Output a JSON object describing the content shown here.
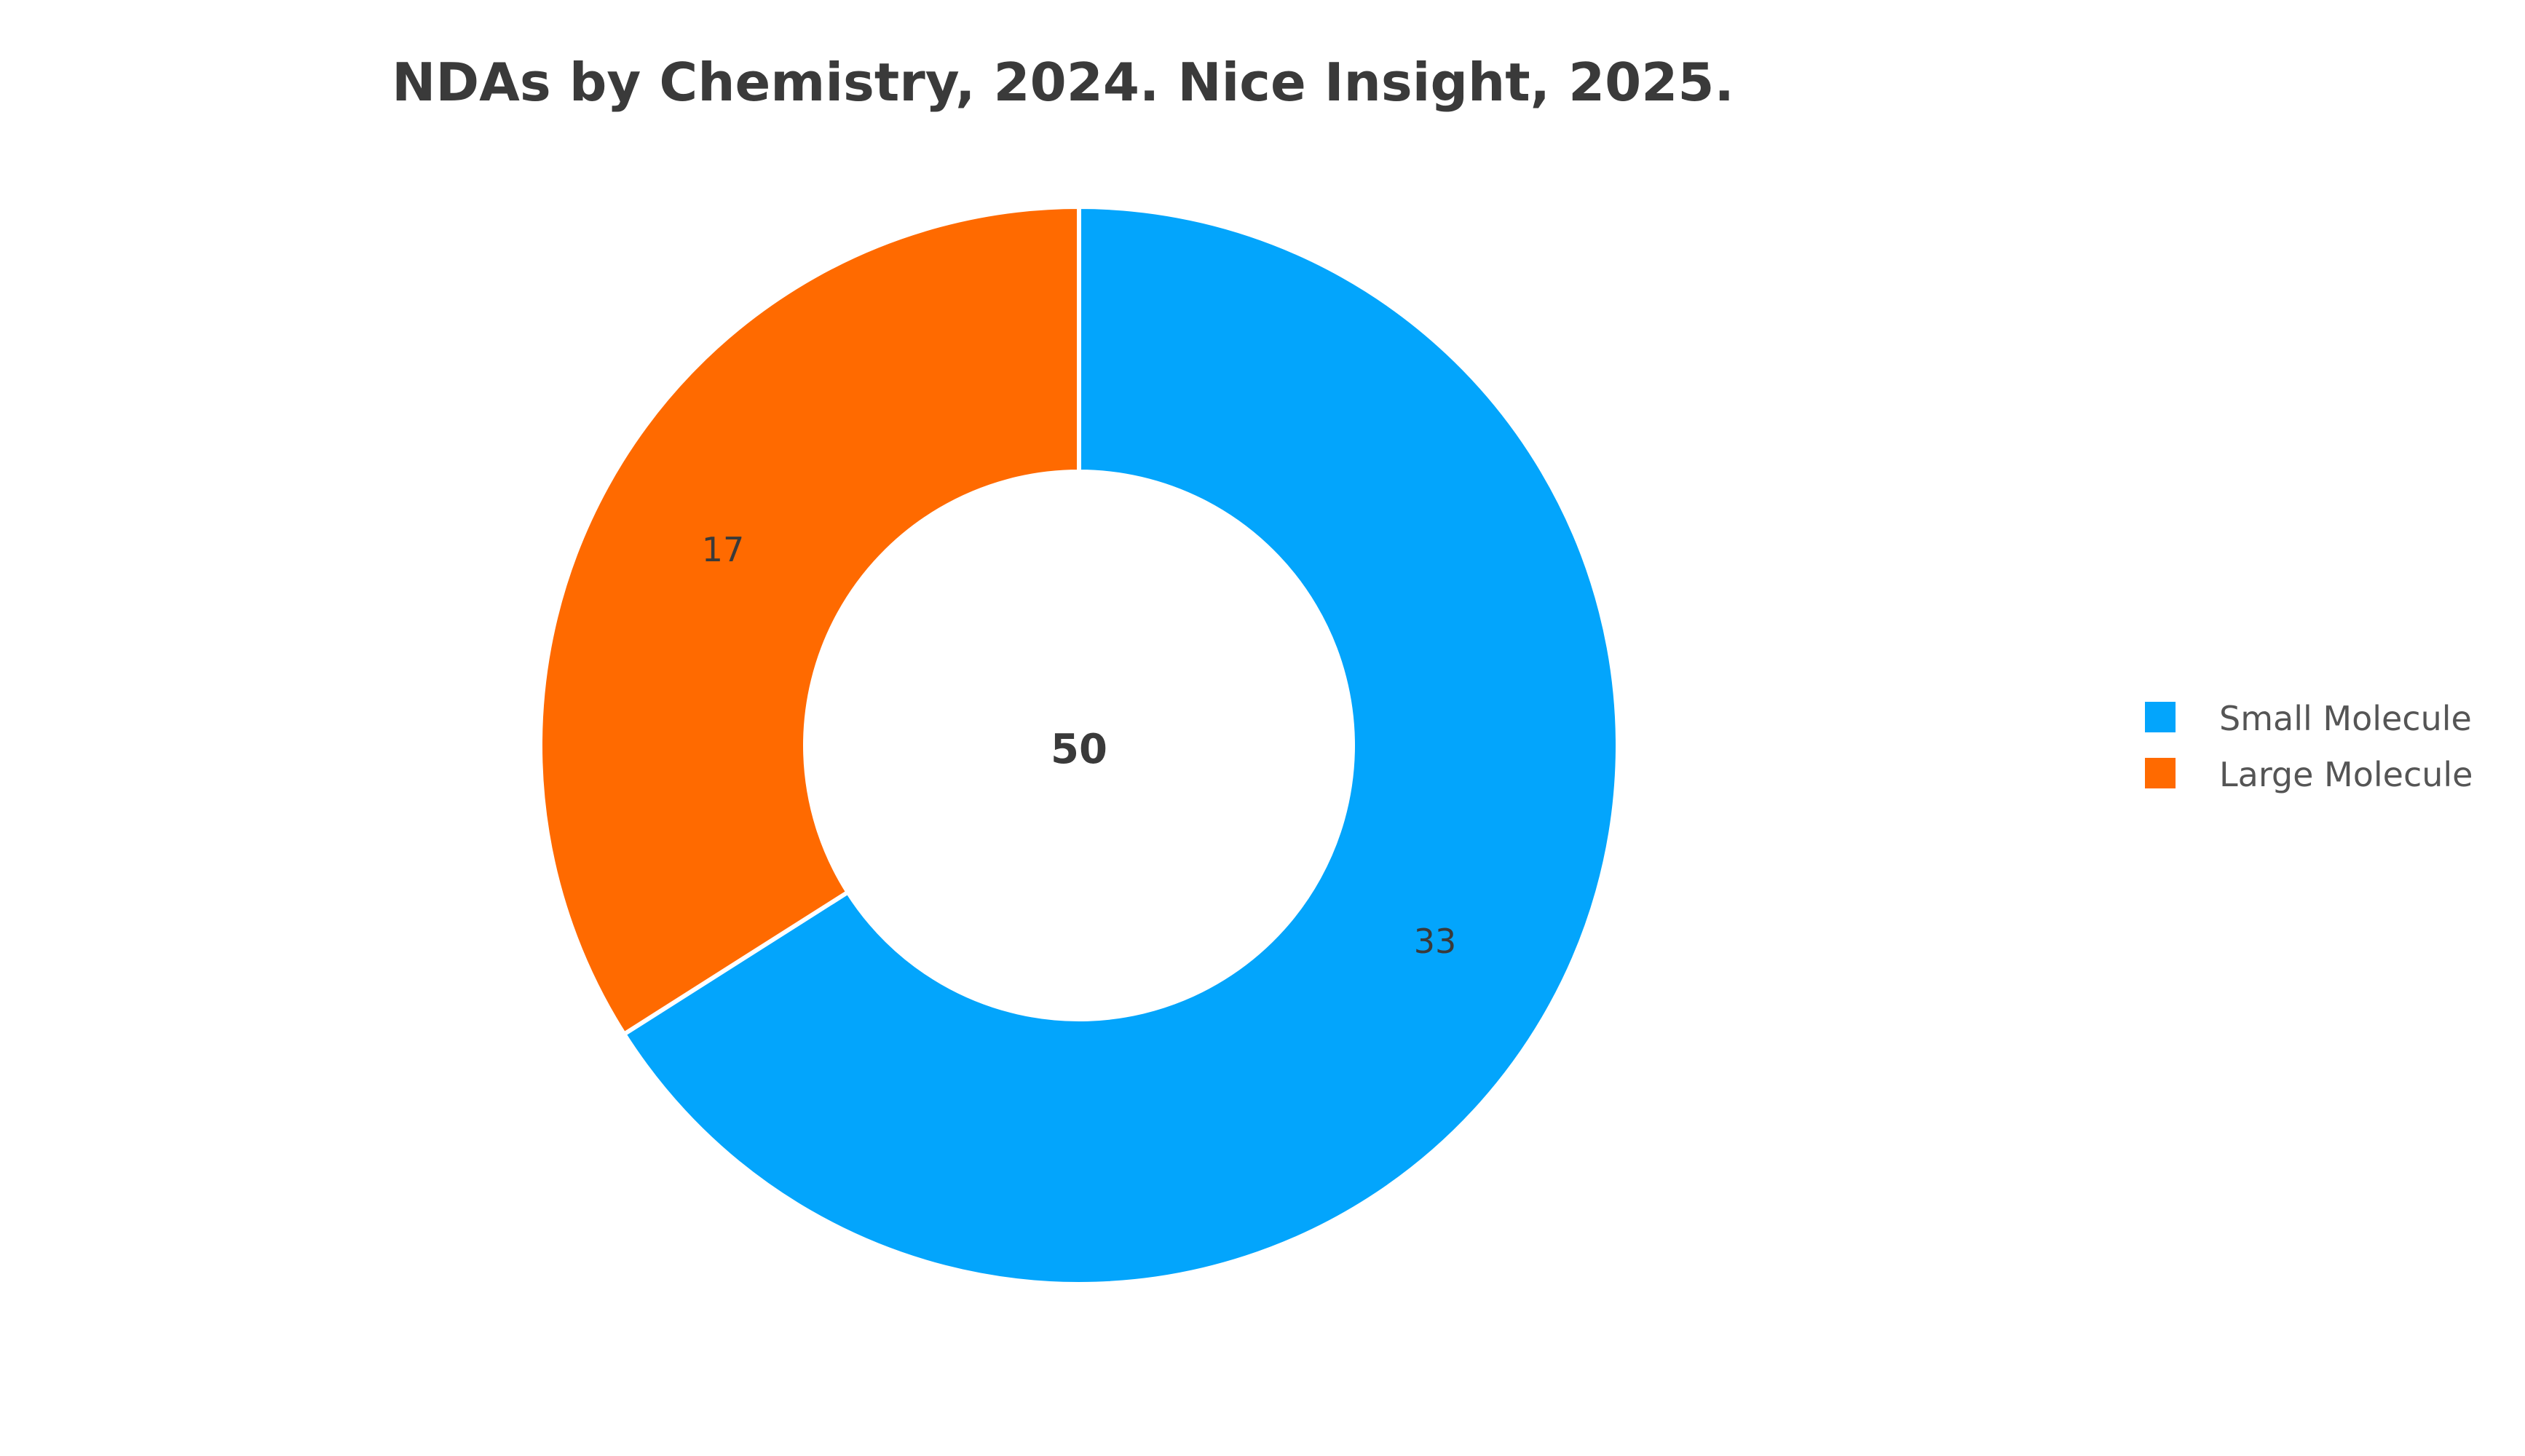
{
  "chart_data": {
    "type": "pie",
    "title": "NDAs by Chemistry, 2024. Nice Insight, 2025.",
    "hole": true,
    "center_label": "50",
    "categories": [
      "Small Molecule",
      "Large Molecule"
    ],
    "values": [
      33,
      17
    ],
    "slice_labels": [
      "33",
      "17"
    ],
    "colors": [
      "#03a5fc",
      "#ff6a00"
    ],
    "legend_placement": "right",
    "legend": [
      {
        "label": "Small Molecule",
        "color": "#03a5fc"
      },
      {
        "label": "Large Molecule",
        "color": "#ff6a00"
      }
    ]
  }
}
